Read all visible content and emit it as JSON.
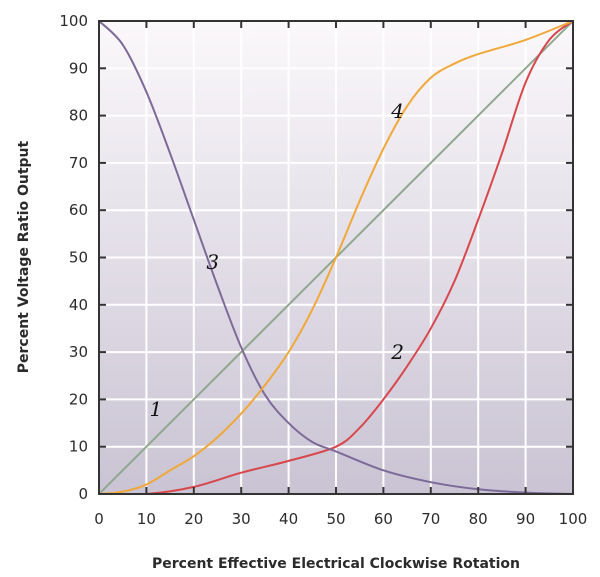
{
  "chart_data": {
    "type": "line",
    "title": "",
    "xlabel": "Percent Effective Electrical Clockwise Rotation",
    "ylabel": "Percent Voltage Ratio Output",
    "xlim": [
      0,
      100
    ],
    "ylim": [
      0,
      100
    ],
    "x_ticks": [
      0,
      10,
      20,
      30,
      40,
      50,
      60,
      70,
      80,
      90,
      100
    ],
    "y_ticks": [
      0,
      10,
      20,
      30,
      40,
      50,
      60,
      70,
      80,
      90,
      100
    ],
    "grid": true,
    "legend": "none",
    "colors": {
      "background_top": "#fbf8fb",
      "background_bottom": "#c9c3d3",
      "grid": "#ffffff",
      "frame": "#333333"
    },
    "series": [
      {
        "label": "1",
        "color": "#8fa88e",
        "x": [
          0,
          100
        ],
        "y": [
          0,
          100
        ],
        "label_at": [
          12,
          18
        ]
      },
      {
        "label": "2",
        "color": "#d8474b",
        "x": [
          0,
          10,
          20,
          30,
          40,
          50,
          55,
          60,
          65,
          70,
          75,
          80,
          85,
          90,
          95,
          100
        ],
        "y": [
          0,
          0,
          1.5,
          4.5,
          7,
          10,
          14,
          20,
          27,
          35,
          45,
          58,
          72,
          87,
          96,
          100
        ],
        "label_at": [
          63,
          30
        ]
      },
      {
        "label": "3",
        "color": "#7d6a98",
        "x": [
          0,
          5,
          10,
          15,
          20,
          25,
          30,
          35,
          40,
          45,
          50,
          60,
          70,
          80,
          90,
          100
        ],
        "y": [
          100,
          95,
          85,
          72,
          58,
          44,
          31,
          21,
          15,
          11,
          9,
          5,
          2.5,
          1,
          0.3,
          0
        ],
        "label_at": [
          24,
          49
        ]
      },
      {
        "label": "4",
        "color": "#f0a838",
        "x": [
          0,
          5,
          10,
          15,
          20,
          25,
          30,
          35,
          40,
          45,
          50,
          55,
          60,
          65,
          70,
          75,
          80,
          90,
          100
        ],
        "y": [
          0,
          0.5,
          2,
          5,
          8,
          12,
          17,
          23,
          30,
          39,
          50,
          62,
          73,
          82,
          88,
          91,
          93,
          96,
          100
        ],
        "label_at": [
          63,
          81
        ]
      }
    ]
  }
}
